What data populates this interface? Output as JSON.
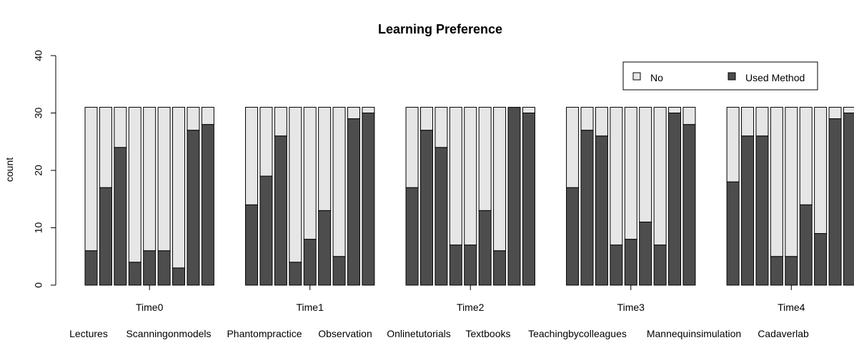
{
  "chart_data": {
    "type": "bar",
    "stacked": true,
    "title": "Learning Preference",
    "ylabel": "count",
    "ylim": [
      0,
      40
    ],
    "yticks": [
      0,
      10,
      20,
      30,
      40
    ],
    "groups": [
      "Time0",
      "Time1",
      "Time2",
      "Time3",
      "Time4"
    ],
    "methods": [
      "Lectures",
      "Scanningonmodels",
      "Phantompractice",
      "Observation",
      "Onlinetutorials",
      "Textbooks",
      "Teachingbycolleagues",
      "Mannequinsimulation",
      "Cadaverlab"
    ],
    "legend": {
      "placement": "top-right",
      "entries": [
        {
          "label": "No",
          "color": "#e6e6e6"
        },
        {
          "label": "Used Method",
          "color": "#4d4d4d"
        }
      ]
    },
    "total_per_bar": 31,
    "series": [
      {
        "name": "Used Method",
        "color": "#4d4d4d",
        "values": [
          [
            6,
            17,
            24,
            4,
            6,
            6,
            3,
            27,
            28
          ],
          [
            14,
            19,
            26,
            4,
            8,
            13,
            5,
            29,
            30
          ],
          [
            17,
            27,
            24,
            7,
            7,
            13,
            6,
            31,
            30
          ],
          [
            17,
            27,
            26,
            7,
            8,
            11,
            7,
            30,
            28
          ],
          [
            18,
            26,
            26,
            5,
            5,
            14,
            9,
            29,
            30
          ]
        ]
      },
      {
        "name": "No",
        "color": "#e6e6e6",
        "values": [
          [
            25,
            14,
            7,
            27,
            25,
            25,
            28,
            4,
            3
          ],
          [
            17,
            12,
            5,
            27,
            23,
            18,
            26,
            2,
            1
          ],
          [
            14,
            4,
            7,
            24,
            24,
            18,
            25,
            0,
            1
          ],
          [
            14,
            4,
            5,
            24,
            23,
            20,
            24,
            1,
            3
          ],
          [
            13,
            5,
            5,
            26,
            26,
            17,
            22,
            2,
            1
          ]
        ]
      }
    ]
  }
}
